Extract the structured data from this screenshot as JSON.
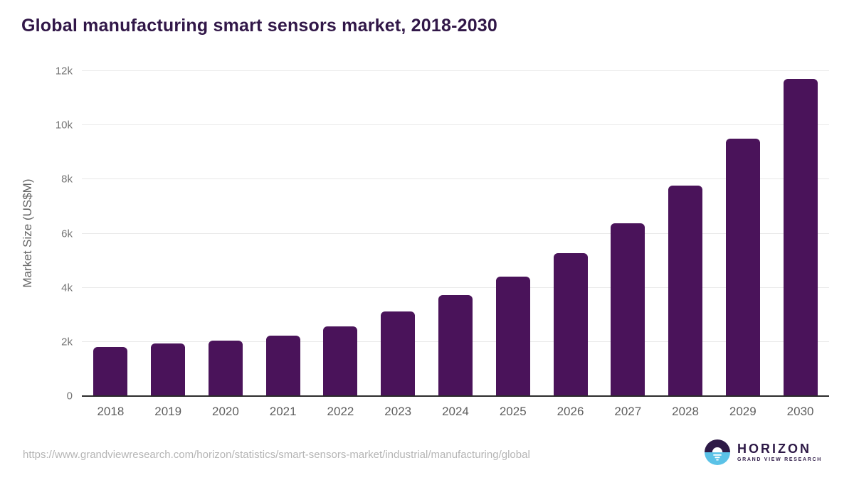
{
  "chart_data": {
    "type": "bar",
    "title": "Global manufacturing smart sensors market, 2018-2030",
    "categories": [
      "2018",
      "2019",
      "2020",
      "2021",
      "2022",
      "2023",
      "2024",
      "2025",
      "2026",
      "2027",
      "2028",
      "2029",
      "2030"
    ],
    "values": [
      1820,
      1950,
      2050,
      2240,
      2580,
      3120,
      3720,
      4420,
      5290,
      6390,
      7780,
      9500,
      11700
    ],
    "xlabel": "",
    "ylabel": "Market Size (US$M)",
    "ylim": [
      0,
      12000
    ],
    "ytick_values": [
      0,
      2000,
      4000,
      6000,
      8000,
      10000,
      12000
    ],
    "ytick_labels": [
      "0",
      "2k",
      "4k",
      "6k",
      "8k",
      "10k",
      "12k"
    ],
    "grid": true,
    "legend_position": "none",
    "bar_color": "#4a135a"
  },
  "colors": {
    "title": "#311748",
    "gridline": "#e8e8e8",
    "axis_line": "#2b2b2b",
    "tick_text": "#757575",
    "source_text": "#b5b5b5",
    "logo_purple": "#2e1a47",
    "logo_blue": "#5bc2e7"
  },
  "footer": {
    "source_url": "https://www.grandviewresearch.com/horizon/statistics/smart-sensors-market/industrial/manufacturing/global",
    "logo": {
      "name": "HORIZON",
      "subtitle": "GRAND VIEW RESEARCH"
    }
  }
}
